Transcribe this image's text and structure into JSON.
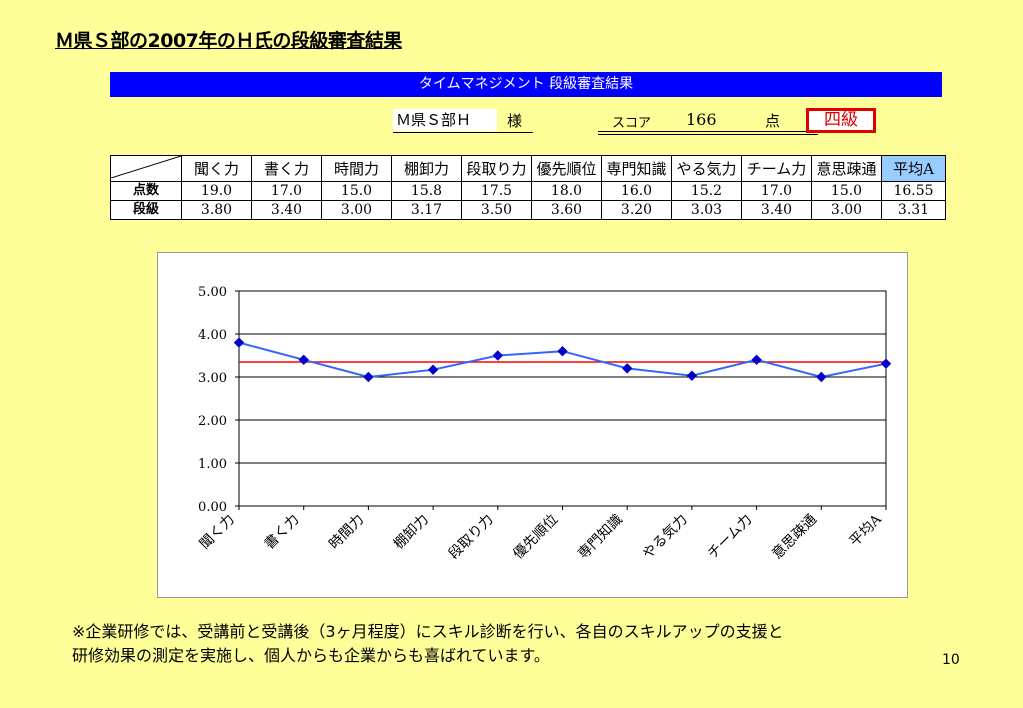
{
  "slide": {
    "title": "Ｍ県Ｓ部の2007年のＨ氏の段級審査結果",
    "banner": "タイムマネジメント 段級審査結果",
    "name": "Ｍ県Ｓ部Ｈ",
    "honorific": "様",
    "score_label": "スコア",
    "score_value": "166",
    "score_unit": "点",
    "grade": "四級",
    "footnote_line1": "※企業研修では、受講前と受講後（3ヶ月程度）にスキル診断を行い、各自のスキルアップの支援と",
    "footnote_line2": "研修効果の測定を実施し、個人からも企業からも喜ばれています。",
    "page_number": "10"
  },
  "table": {
    "headers": [
      "聞く力",
      "書く力",
      "時間力",
      "棚卸力",
      "段取り力",
      "優先順位",
      "専門知識",
      "やる気力",
      "チーム力",
      "意思疎通",
      "平均A"
    ],
    "rows": [
      {
        "label": "点数",
        "values": [
          "19.0",
          "17.0",
          "15.0",
          "15.8",
          "17.5",
          "18.0",
          "16.0",
          "15.2",
          "17.0",
          "15.0",
          "16.55"
        ]
      },
      {
        "label": "段級",
        "values": [
          "3.80",
          "3.40",
          "3.00",
          "3.17",
          "3.50",
          "3.60",
          "3.20",
          "3.03",
          "3.40",
          "3.00",
          "3.31"
        ]
      }
    ],
    "highlight_color": "#99CCFF"
  },
  "chart_data": {
    "type": "line",
    "categories": [
      "聞く力",
      "書く力",
      "時間力",
      "棚卸力",
      "段取り力",
      "優先順位",
      "専門知識",
      "やる気力",
      "チーム力",
      "意思疎通",
      "平均A"
    ],
    "series": [
      {
        "values": [
          3.8,
          3.4,
          3.0,
          3.17,
          3.5,
          3.6,
          3.2,
          3.03,
          3.4,
          3.0,
          3.31
        ],
        "color": "#3366FF",
        "marker": "diamond"
      }
    ],
    "reference_line": {
      "value": 3.35,
      "color": "#FF0000"
    },
    "ylim": [
      0,
      5
    ],
    "yticks": [
      "0.00",
      "1.00",
      "2.00",
      "3.00",
      "4.00",
      "5.00"
    ],
    "grid": true,
    "title": "",
    "xlabel": "",
    "ylabel": ""
  },
  "colors": {
    "background": "#FFFF99",
    "banner": "#0000FF",
    "grade_border": "#E00000"
  }
}
